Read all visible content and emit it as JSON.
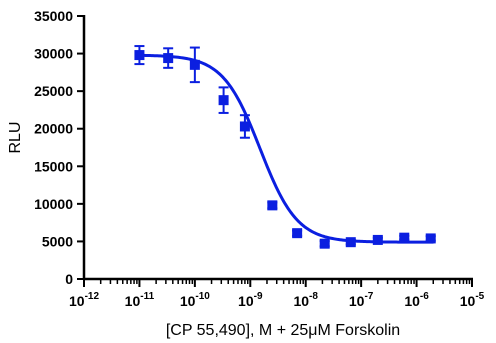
{
  "chart_data": {
    "type": "scatter",
    "title": "",
    "xlabel": "[CP 55,490], M + 25μM Forskolin",
    "ylabel": "RLU",
    "x_scale": "log",
    "xlim": [
      1e-12,
      1e-05
    ],
    "ylim": [
      0,
      35000
    ],
    "y_ticks": [
      0,
      5000,
      10000,
      15000,
      20000,
      25000,
      30000,
      35000
    ],
    "x_tick_labels": [
      {
        "base": "10",
        "exp": "-12"
      },
      {
        "base": "10",
        "exp": "-11"
      },
      {
        "base": "10",
        "exp": "-10"
      },
      {
        "base": "10",
        "exp": "-9"
      },
      {
        "base": "10",
        "exp": "-8"
      },
      {
        "base": "10",
        "exp": "-7"
      },
      {
        "base": "10",
        "exp": "-6"
      },
      {
        "base": "10",
        "exp": "-5"
      }
    ],
    "grid": false,
    "series": [
      {
        "color": "#0b1fe0",
        "marker": "square",
        "x": [
          1e-11,
          3.3e-11,
          1e-10,
          3.3e-10,
          8e-10,
          2.5e-09,
          7e-09,
          2.2e-08,
          6.5e-08,
          2e-07,
          6e-07,
          1.8e-06
        ],
        "y": [
          29800,
          29400,
          28500,
          23800,
          20300,
          9800,
          6100,
          4700,
          4900,
          5200,
          5500,
          5400
        ],
        "err": [
          1200,
          1300,
          2300,
          1700,
          1500,
          400,
          350,
          350,
          300,
          300,
          250,
          300
        ]
      }
    ],
    "fit_curve": {
      "color": "#0b1fe0",
      "top": 29800,
      "bottom": 4900,
      "ec50": 1.5e-09,
      "hill": 1.3
    }
  }
}
